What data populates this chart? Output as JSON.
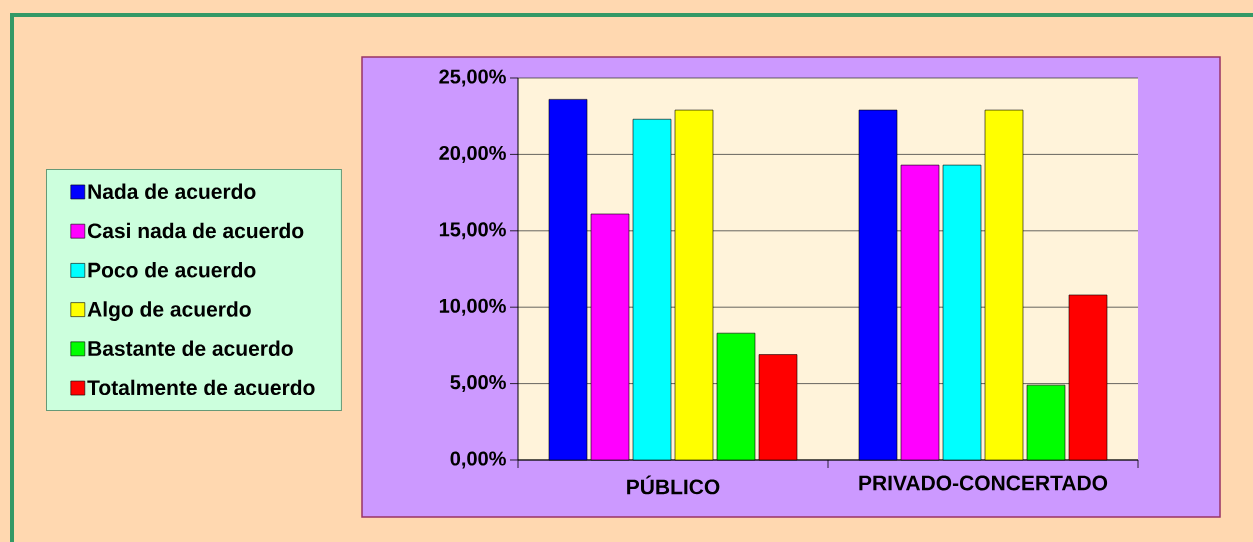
{
  "chart_data": {
    "type": "bar",
    "categories": [
      "PÚBLICO",
      "PRIVADO-CONCERTADO"
    ],
    "series": [
      {
        "name": "Nada de acuerdo",
        "color": "#0000ff",
        "values": [
          23.6,
          22.9
        ]
      },
      {
        "name": "Casi nada de acuerdo",
        "color": "#ff00ff",
        "values": [
          16.1,
          19.3
        ]
      },
      {
        "name": "Poco de acuerdo",
        "color": "#00ffff",
        "values": [
          22.3,
          19.3
        ]
      },
      {
        "name": "Algo de acuerdo",
        "color": "#ffff00",
        "values": [
          22.9,
          22.9
        ]
      },
      {
        "name": "Bastante de acuerdo",
        "color": "#00ff00",
        "values": [
          8.3,
          4.9
        ]
      },
      {
        "name": "Totalmente de acuerdo",
        "color": "#ff0000",
        "values": [
          6.9,
          10.8
        ]
      }
    ],
    "ylim": [
      0,
      25
    ],
    "yticks": [
      {
        "value": 0,
        "label": "0,00%"
      },
      {
        "value": 5,
        "label": "5,00%"
      },
      {
        "value": 10,
        "label": "10,00%"
      },
      {
        "value": 15,
        "label": "15,00%"
      },
      {
        "value": 20,
        "label": "20,00%"
      },
      {
        "value": 25,
        "label": "25,00%"
      }
    ],
    "grid": "y",
    "legend": "left"
  }
}
